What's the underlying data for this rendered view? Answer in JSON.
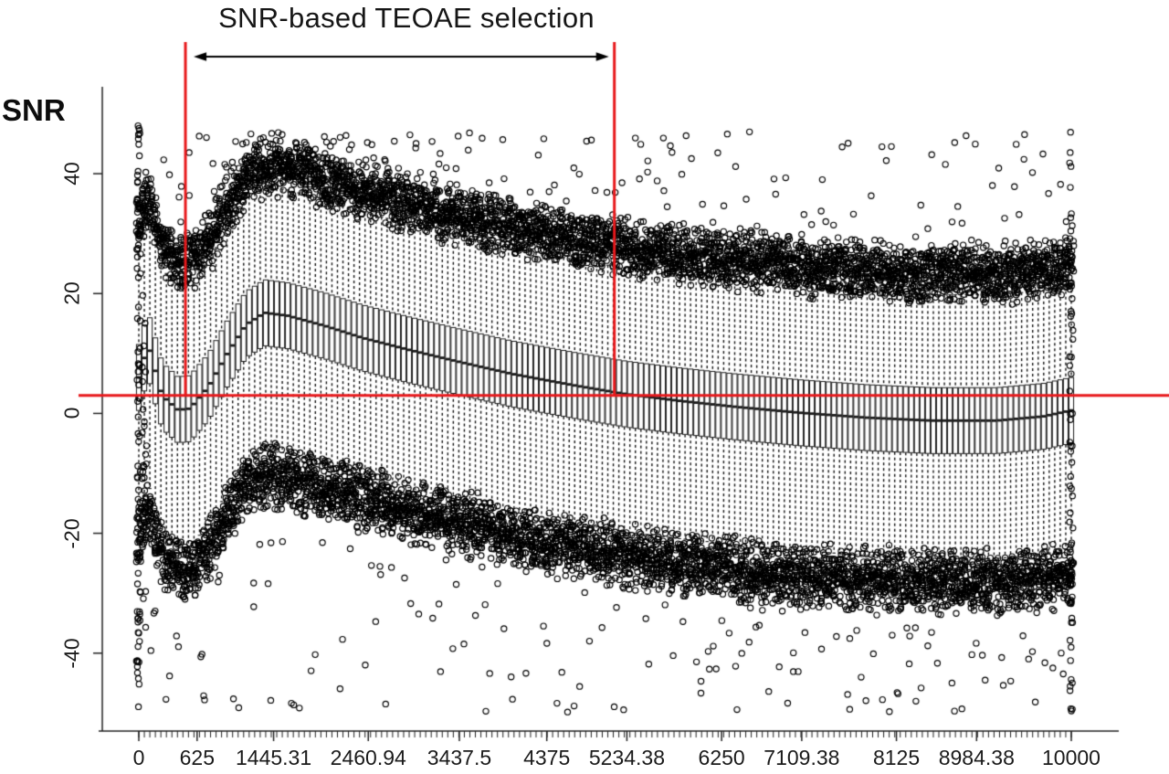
{
  "chart_data": {
    "type": "boxplot",
    "title": "SNR-based TEOAE selection",
    "ylabel": "SNR",
    "xlabel": "",
    "xlim": [
      0,
      10000
    ],
    "ylim": [
      -53,
      54.5
    ],
    "grid": false,
    "legend": null,
    "y_ticks": [
      -40,
      -20,
      0,
      20,
      40
    ],
    "y_tick_labels": [
      "-40",
      "-20",
      "0",
      "20",
      "40"
    ],
    "x_tick_values": [
      0,
      625,
      1445.31,
      2460.94,
      3437.5,
      4375,
      5234.38,
      6250,
      7109.38,
      8125,
      8984.38,
      10000
    ],
    "x_tick_labels": [
      "0",
      "625",
      "1445.31",
      "2460.94",
      "3437.5",
      "4375",
      "5234.38",
      "6250",
      "7109.38",
      "8125",
      "8984.38",
      "10000"
    ],
    "n_boxes": 170,
    "box_stats_model": {
      "median_control_points": [
        [
          0,
          6
        ],
        [
          100,
          11.5
        ],
        [
          250,
          3
        ],
        [
          420,
          0.6
        ],
        [
          550,
          0.8
        ],
        [
          750,
          4.5
        ],
        [
          950,
          10
        ],
        [
          1150,
          14.8
        ],
        [
          1350,
          16.8
        ],
        [
          1600,
          16.3
        ],
        [
          2000,
          14.6
        ],
        [
          2400,
          12.6
        ],
        [
          2900,
          10.6
        ],
        [
          3437,
          8.6
        ],
        [
          4000,
          6.6
        ],
        [
          4700,
          4.6
        ],
        [
          5234,
          3.2
        ],
        [
          5800,
          2.1
        ],
        [
          6400,
          1.1
        ],
        [
          7100,
          0.1
        ],
        [
          7800,
          -0.7
        ],
        [
          8500,
          -1.2
        ],
        [
          9200,
          -1.2
        ],
        [
          9700,
          -0.5
        ],
        [
          10000,
          0.5
        ]
      ],
      "iqr_half_height": 5.5,
      "upper_whisker_extent": 21,
      "lower_whisker_extent": 23,
      "upper_outlier_band": [
        19,
        30
      ],
      "upper_outlier_max": 47,
      "lower_outlier_band": [
        21,
        33
      ],
      "lower_outlier_min": -50
    }
  },
  "annotations": {
    "selection_label": "SNR-based TEOAE selection",
    "selection_range_hz": [
      500,
      5100
    ],
    "snr_criterion_db": 3,
    "line_color": "#e8191c",
    "arrow_style": "double-headed"
  }
}
